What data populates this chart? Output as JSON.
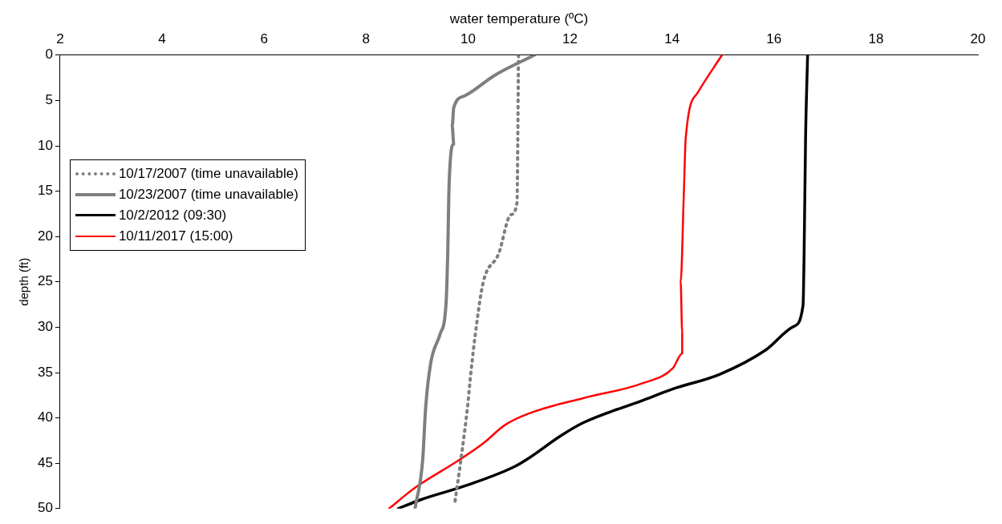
{
  "chart_data": {
    "type": "line",
    "xlabel": "water temperature (ºC)",
    "ylabel": "depth (ft)",
    "xlim": [
      2,
      20
    ],
    "xticks": [
      2,
      4,
      6,
      8,
      10,
      12,
      14,
      16,
      18,
      20
    ],
    "ylim": [
      50,
      0
    ],
    "yticks": [
      0,
      5,
      10,
      15,
      20,
      25,
      30,
      35,
      40,
      45,
      50
    ],
    "grid": false,
    "legend": "left",
    "marker": "none",
    "series": [
      {
        "name": "10/17/2007 (time unavailable)",
        "color": "#7f7f7f",
        "line_style": "dotted",
        "x": [
          10.99,
          10.96,
          10.84,
          10.6,
          10.3,
          10.17,
          10.06,
          9.99,
          9.88,
          9.74
        ],
        "values": [
          0,
          16.3,
          17.6,
          21.9,
          25,
          29.6,
          34.8,
          38.8,
          43.8,
          49.4
        ]
      },
      {
        "name": "10/23/2007 (time unavailable)",
        "color": "#7f7f7f",
        "line_style": "solid",
        "x": [
          11.3,
          10.53,
          9.93,
          9.72,
          9.69,
          9.72,
          9.63,
          9.6,
          9.57,
          9.45,
          9.27,
          9.17,
          9.11,
          8.96
        ],
        "values": [
          0,
          2.2,
          4.5,
          5.8,
          7.8,
          9.8,
          14.1,
          22.3,
          27.3,
          30.8,
          33.9,
          38.8,
          44.7,
          50
        ]
      },
      {
        "name": "10/2/2012 (09:30)",
        "color": "#000000",
        "line_style": "solid",
        "x": [
          16.66,
          16.62,
          16.59,
          16.57,
          16.39,
          15.84,
          14.93,
          14.02,
          13.41,
          12.27,
          11.81,
          11.2,
          10.9,
          9.99,
          9.08,
          8.63
        ],
        "values": [
          0,
          9.1,
          22.3,
          27.6,
          29.9,
          32.5,
          35.2,
          36.8,
          38.1,
          40.5,
          42,
          44.4,
          45.4,
          47.4,
          49,
          50
        ]
      },
      {
        "name": "10/11/2017 (15:00)",
        "color": "#ff0000",
        "line_style": "solid",
        "x": [
          14.98,
          14.51,
          14.27,
          14.23,
          14.17,
          14.2,
          14.2,
          14.02,
          13.41,
          12.27,
          11.2,
          10.72,
          10.3,
          9.81,
          8.96,
          8.45
        ],
        "values": [
          0,
          4.1,
          9.1,
          15.7,
          25,
          30.6,
          32.9,
          34.5,
          36.2,
          37.8,
          39.5,
          40.8,
          42.8,
          44.7,
          47.7,
          50
        ]
      }
    ]
  }
}
